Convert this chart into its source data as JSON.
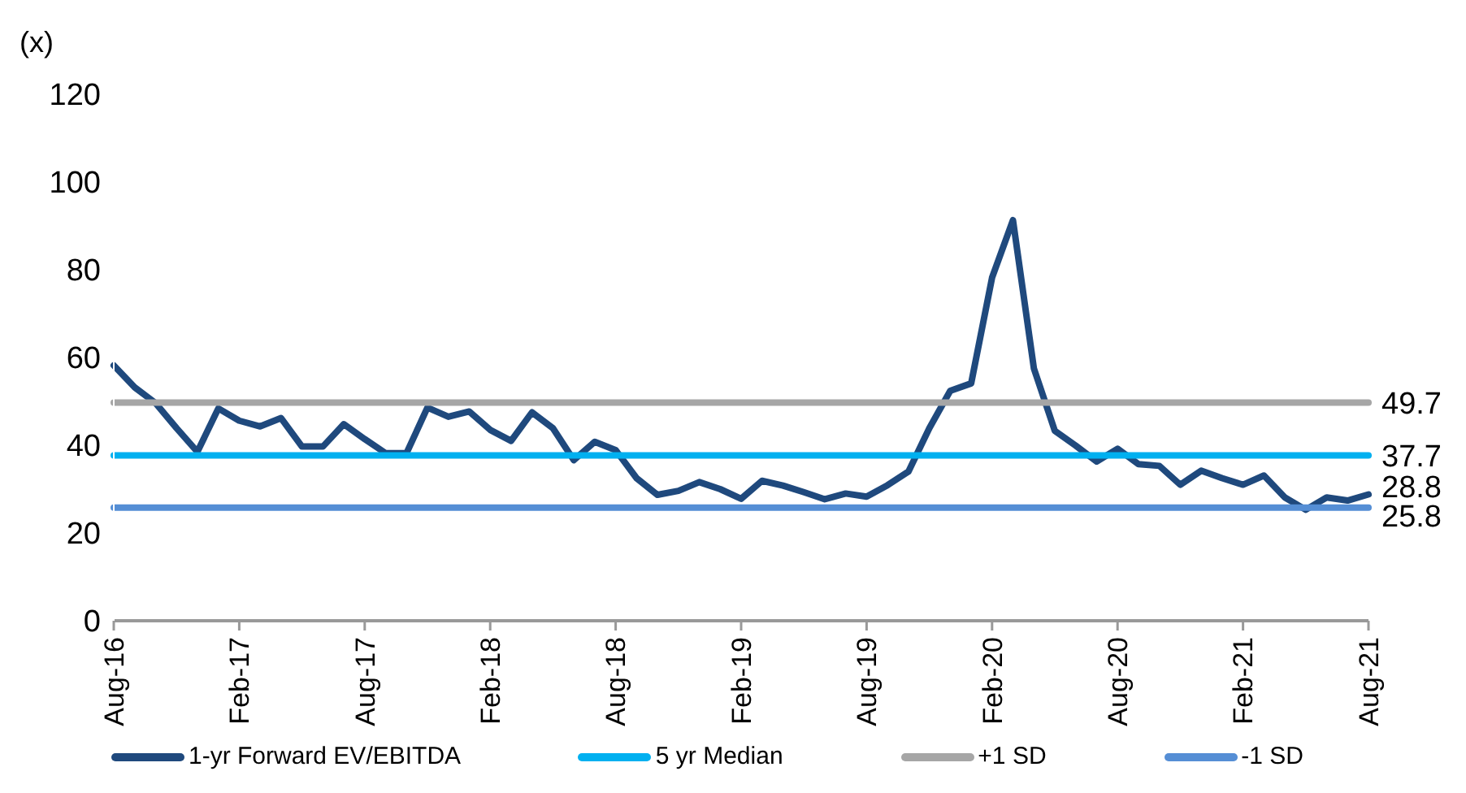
{
  "chart_data": {
    "type": "line",
    "ylabel": "(x)",
    "categories": [
      "Aug-16",
      null,
      null,
      null,
      null,
      null,
      "Feb-17",
      null,
      null,
      null,
      null,
      null,
      "Aug-17",
      null,
      null,
      null,
      null,
      null,
      "Feb-18",
      null,
      null,
      null,
      null,
      null,
      "Aug-18",
      null,
      null,
      null,
      null,
      null,
      "Feb-19",
      null,
      null,
      null,
      null,
      null,
      "Aug-19",
      null,
      null,
      null,
      null,
      null,
      "Feb-20",
      null,
      null,
      null,
      null,
      null,
      "Aug-20",
      null,
      null,
      null,
      null,
      null,
      "Feb-21",
      null,
      null,
      null,
      null,
      null,
      "Aug-21"
    ],
    "series": [
      {
        "name": "1-yr Forward EV/EBITDA",
        "color": "#1f497d",
        "values": [
          58.2,
          53.2,
          49.6,
          43.9,
          38.5,
          48.4,
          45.6,
          44.3,
          46.2,
          39.7,
          39.7,
          44.8,
          41.4,
          38.2,
          38.2,
          48.6,
          46.5,
          47.7,
          43.5,
          41.0,
          47.5,
          43.9,
          36.6,
          40.8,
          38.9,
          32.5,
          28.7,
          29.6,
          31.6,
          30.0,
          27.8,
          31.9,
          30.8,
          29.3,
          27.7,
          29.0,
          28.3,
          30.9,
          34.0,
          43.9,
          52.4,
          54.1,
          78.2,
          91.3,
          57.5,
          43.3,
          39.9,
          36.3,
          39.2,
          35.7,
          35.3,
          31.0,
          34.2,
          32.5,
          31.0,
          33.1,
          28.1,
          25.3,
          28.1,
          27.4,
          28.8
        ],
        "value_labels": [
          null,
          null,
          null,
          null,
          null,
          null,
          null,
          null,
          null,
          null,
          null,
          null,
          null,
          null,
          null,
          null,
          null,
          null,
          null,
          null,
          null,
          null,
          null,
          null,
          null,
          null,
          null,
          null,
          null,
          null,
          null,
          null,
          null,
          null,
          null,
          null,
          null,
          null,
          null,
          null,
          null,
          null,
          null,
          null,
          null,
          null,
          null,
          null,
          null,
          null,
          null,
          null,
          null,
          null,
          null,
          null,
          null,
          null,
          null,
          null,
          "28.8"
        ]
      },
      {
        "name": "5 yr Median",
        "color": "#00b0f0",
        "values": [
          37.7,
          37.7,
          37.7,
          37.7,
          37.7,
          37.7,
          37.7,
          37.7,
          37.7,
          37.7,
          37.7,
          37.7,
          37.7,
          37.7,
          37.7,
          37.7,
          37.7,
          37.7,
          37.7,
          37.7,
          37.7,
          37.7,
          37.7,
          37.7,
          37.7,
          37.7,
          37.7,
          37.7,
          37.7,
          37.7,
          37.7,
          37.7,
          37.7,
          37.7,
          37.7,
          37.7,
          37.7,
          37.7,
          37.7,
          37.7,
          37.7,
          37.7,
          37.7,
          37.7,
          37.7,
          37.7,
          37.7,
          37.7,
          37.7,
          37.7,
          37.7,
          37.7,
          37.7,
          37.7,
          37.7,
          37.7,
          37.7,
          37.7,
          37.7,
          37.7,
          37.7
        ],
        "value_labels": [
          null,
          null,
          null,
          null,
          null,
          null,
          null,
          null,
          null,
          null,
          null,
          null,
          null,
          null,
          null,
          null,
          null,
          null,
          null,
          null,
          null,
          null,
          null,
          null,
          null,
          null,
          null,
          null,
          null,
          null,
          null,
          null,
          null,
          null,
          null,
          null,
          null,
          null,
          null,
          null,
          null,
          null,
          null,
          null,
          null,
          null,
          null,
          null,
          null,
          null,
          null,
          null,
          null,
          null,
          null,
          null,
          null,
          null,
          null,
          null,
          "37.7"
        ]
      },
      {
        "name": "+1 SD",
        "color": "#a6a6a6",
        "values": [
          49.7,
          49.7,
          49.7,
          49.7,
          49.7,
          49.7,
          49.7,
          49.7,
          49.7,
          49.7,
          49.7,
          49.7,
          49.7,
          49.7,
          49.7,
          49.7,
          49.7,
          49.7,
          49.7,
          49.7,
          49.7,
          49.7,
          49.7,
          49.7,
          49.7,
          49.7,
          49.7,
          49.7,
          49.7,
          49.7,
          49.7,
          49.7,
          49.7,
          49.7,
          49.7,
          49.7,
          49.7,
          49.7,
          49.7,
          49.7,
          49.7,
          49.7,
          49.7,
          49.7,
          49.7,
          49.7,
          49.7,
          49.7,
          49.7,
          49.7,
          49.7,
          49.7,
          49.7,
          49.7,
          49.7,
          49.7,
          49.7,
          49.7,
          49.7,
          49.7,
          49.7
        ],
        "value_labels": [
          null,
          null,
          null,
          null,
          null,
          null,
          null,
          null,
          null,
          null,
          null,
          null,
          null,
          null,
          null,
          null,
          null,
          null,
          null,
          null,
          null,
          null,
          null,
          null,
          null,
          null,
          null,
          null,
          null,
          null,
          null,
          null,
          null,
          null,
          null,
          null,
          null,
          null,
          null,
          null,
          null,
          null,
          null,
          null,
          null,
          null,
          null,
          null,
          null,
          null,
          null,
          null,
          null,
          null,
          null,
          null,
          null,
          null,
          null,
          null,
          "49.7"
        ]
      },
      {
        "name": "-1 SD",
        "color": "#558ed5",
        "values": [
          25.8,
          25.8,
          25.8,
          25.8,
          25.8,
          25.8,
          25.8,
          25.8,
          25.8,
          25.8,
          25.8,
          25.8,
          25.8,
          25.8,
          25.8,
          25.8,
          25.8,
          25.8,
          25.8,
          25.8,
          25.8,
          25.8,
          25.8,
          25.8,
          25.8,
          25.8,
          25.8,
          25.8,
          25.8,
          25.8,
          25.8,
          25.8,
          25.8,
          25.8,
          25.8,
          25.8,
          25.8,
          25.8,
          25.8,
          25.8,
          25.8,
          25.8,
          25.8,
          25.8,
          25.8,
          25.8,
          25.8,
          25.8,
          25.8,
          25.8,
          25.8,
          25.8,
          25.8,
          25.8,
          25.8,
          25.8,
          25.8,
          25.8,
          25.8,
          25.8,
          25.8
        ],
        "value_labels": [
          null,
          null,
          null,
          null,
          null,
          null,
          null,
          null,
          null,
          null,
          null,
          null,
          null,
          null,
          null,
          null,
          null,
          null,
          null,
          null,
          null,
          null,
          null,
          null,
          null,
          null,
          null,
          null,
          null,
          null,
          null,
          null,
          null,
          null,
          null,
          null,
          null,
          null,
          null,
          null,
          null,
          null,
          null,
          null,
          null,
          null,
          null,
          null,
          null,
          null,
          null,
          null,
          null,
          null,
          null,
          null,
          null,
          null,
          null,
          null,
          "25.8"
        ]
      }
    ],
    "ylim": [
      0,
      120
    ],
    "yticks": [
      0,
      20,
      40,
      60,
      80,
      100,
      120
    ],
    "grid": false,
    "legend": "bottom",
    "marker": "none",
    "line_style": "solid"
  }
}
